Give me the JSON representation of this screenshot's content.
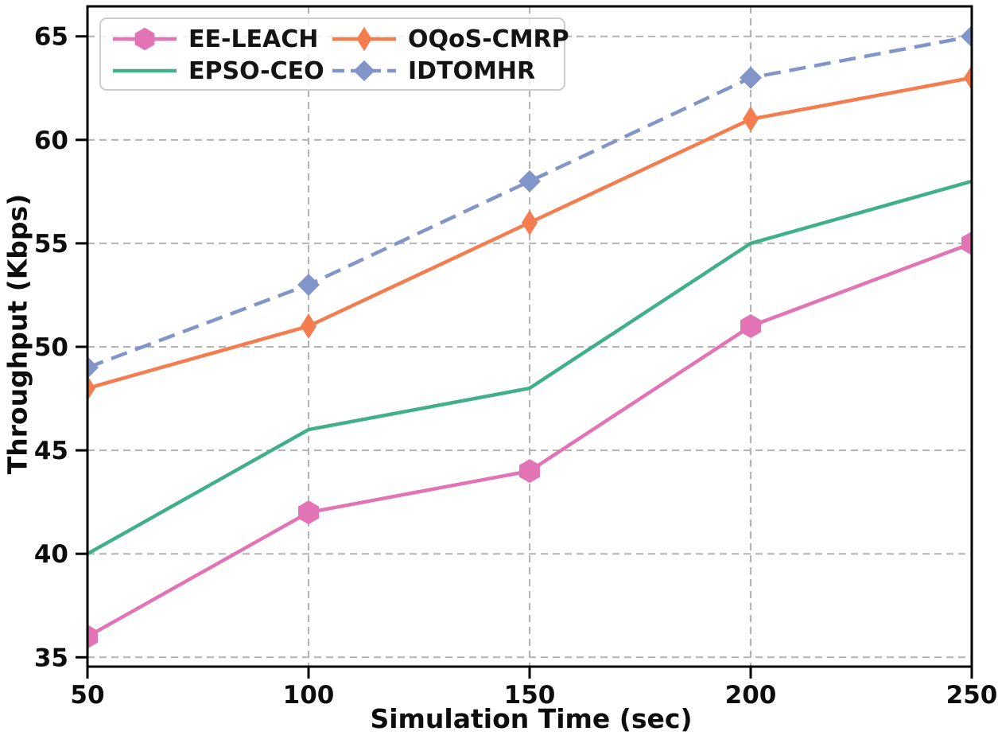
{
  "chart_data": {
    "type": "line",
    "title": "",
    "xlabel": "Simulation Time (sec)",
    "ylabel": "Throughput (Kbps)",
    "x": [
      50,
      100,
      150,
      200,
      250
    ],
    "xticks": [
      "50",
      "100",
      "150",
      "200",
      "250"
    ],
    "yticks": [
      "35",
      "40",
      "45",
      "50",
      "55",
      "60",
      "65"
    ],
    "xlim": [
      50,
      250
    ],
    "ylim": [
      34.55,
      66.45
    ],
    "grid": true,
    "grid_color": "#b3b3b3",
    "legend_position": "upper left",
    "series": [
      {
        "name": "EE-LEACH",
        "values": [
          36,
          42,
          44,
          51,
          55
        ],
        "color": "#e273b4",
        "marker": "hexagon",
        "line_style": "solid"
      },
      {
        "name": "EPSO-CEO",
        "values": [
          40,
          46,
          48,
          55,
          58
        ],
        "color": "#41b08a",
        "marker": "none",
        "line_style": "solid"
      },
      {
        "name": "OQoS-CMRP",
        "values": [
          48,
          51,
          56,
          61,
          63
        ],
        "color": "#f57c4e",
        "marker": "thin-diamond",
        "line_style": "solid"
      },
      {
        "name": "IDTOMHR",
        "values": [
          49,
          53,
          58,
          63,
          65
        ],
        "color": "#8295c8",
        "marker": "diamond",
        "line_style": "dashed"
      }
    ],
    "legend_order": [
      0,
      2,
      1,
      3
    ]
  }
}
